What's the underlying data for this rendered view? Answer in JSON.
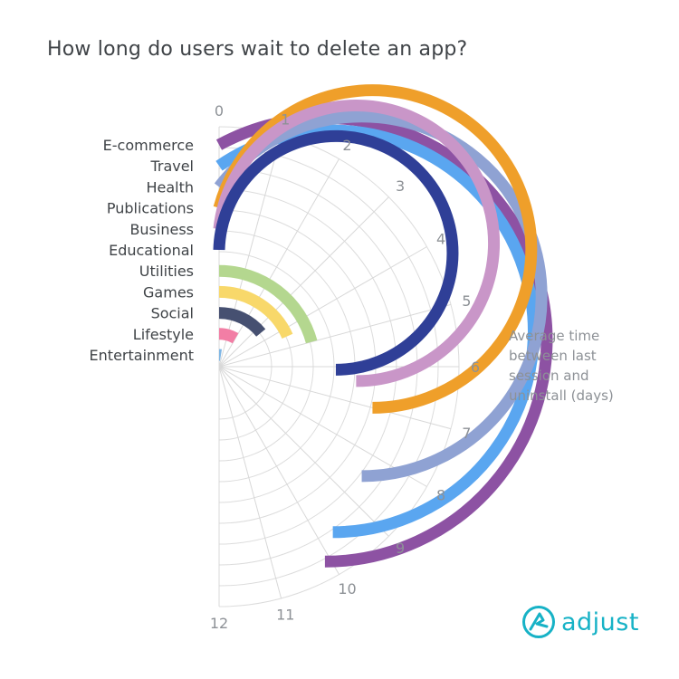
{
  "title": "How long do users wait to delete an app?",
  "brand": {
    "name": "adjust",
    "color": "#17b2c6"
  },
  "chart_data": {
    "type": "radial-bar",
    "title": "How long do users wait to delete an app?",
    "axis_label": [
      "Average time",
      "between last",
      "session and",
      "uninstall (days)"
    ],
    "axis_range": [
      0,
      12
    ],
    "ticks": [
      0,
      1,
      2,
      3,
      4,
      5,
      6,
      7,
      8,
      9,
      10,
      11,
      12
    ],
    "grid": true,
    "categories": [
      "E-commerce",
      "Travel",
      "Health",
      "Publications",
      "Business",
      "Educational",
      "Utilities",
      "Games",
      "Social",
      "Lifestyle",
      "Entertainment"
    ],
    "values": [
      10.1,
      9.7,
      8.5,
      7.0,
      6.4,
      6.1,
      5.0,
      4.4,
      3.4,
      2.0,
      0.6
    ],
    "colors": [
      "#8d52a3",
      "#5aa6f0",
      "#8fa2d3",
      "#ef9f2a",
      "#c996c8",
      "#2f3f97",
      "#b4d78f",
      "#f8d86a",
      "#465071",
      "#f27ea5",
      "#7fb6e5"
    ]
  }
}
